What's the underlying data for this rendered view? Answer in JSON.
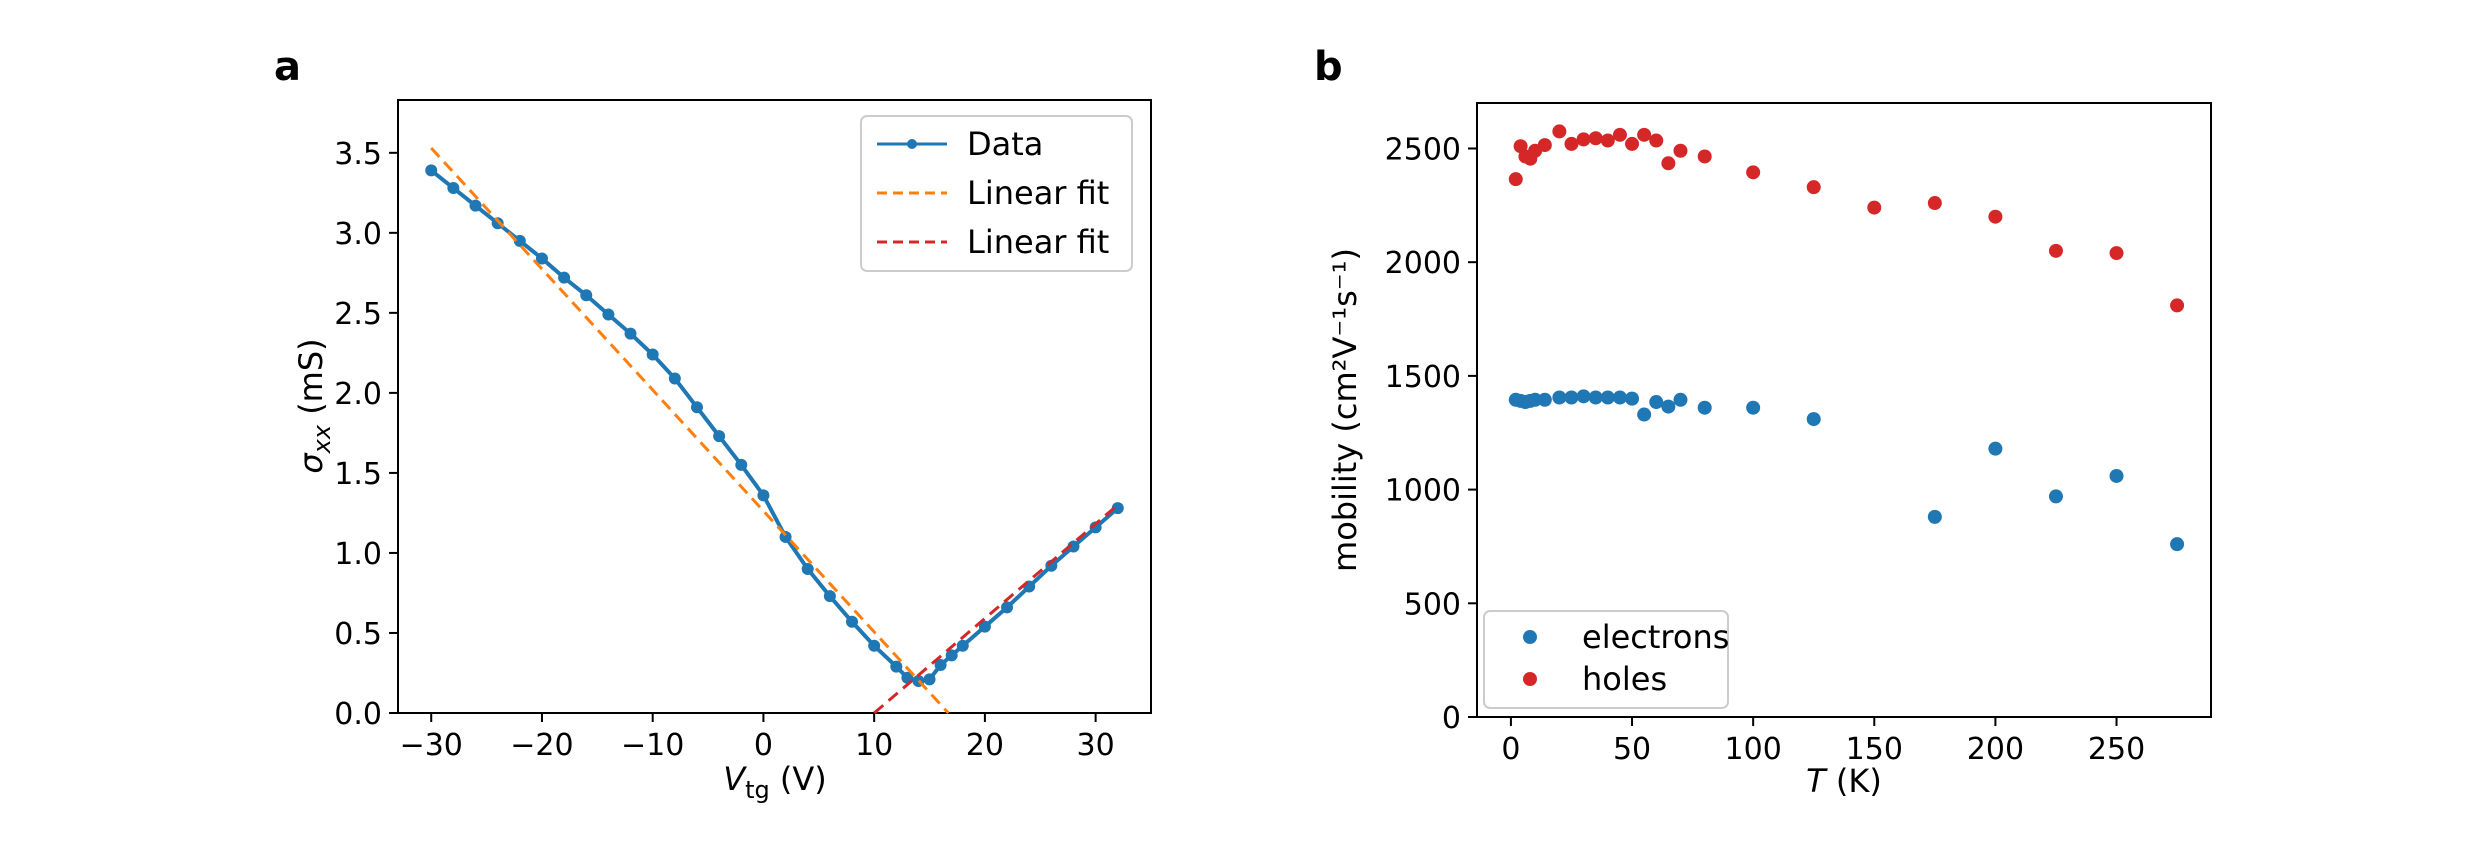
{
  "panels": {
    "a": "a",
    "b": "b"
  },
  "chart_data": [
    {
      "panel": "a",
      "type": "line",
      "title": "",
      "xlabel": {
        "main": "V",
        "sub": "tg",
        "unit": " (V)"
      },
      "ylabel": {
        "main": "σ",
        "sub": "xx",
        "unit": " (mS)"
      },
      "xlim": [
        -33,
        35
      ],
      "ylim": [
        0,
        3.83
      ],
      "xticks": [
        -30,
        -20,
        -10,
        0,
        10,
        20,
        30
      ],
      "xtick_labels": [
        "−30",
        "−20",
        "−10",
        "0",
        "10",
        "20",
        "30"
      ],
      "yticks": [
        0,
        0.5,
        1,
        1.5,
        2,
        2.5,
        3,
        3.5
      ],
      "ytick_labels": [
        "0.0",
        "0.5",
        "1.0",
        "1.5",
        "2.0",
        "2.5",
        "3.0",
        "3.5"
      ],
      "legend_position": "upper right",
      "series": [
        {
          "name": "Data",
          "kind": "line-marker",
          "color": "#1f77b4",
          "x": [
            -30,
            -28,
            -26,
            -24,
            -22,
            -20,
            -18,
            -16,
            -14,
            -12,
            -10,
            -8,
            -6,
            -4,
            -2,
            0,
            2,
            4,
            6,
            8,
            10,
            12,
            13,
            14,
            15,
            16,
            17,
            18,
            20,
            22,
            24,
            26,
            28,
            30,
            32
          ],
          "y": [
            3.39,
            3.28,
            3.17,
            3.06,
            2.95,
            2.84,
            2.72,
            2.61,
            2.49,
            2.37,
            2.24,
            2.09,
            1.91,
            1.73,
            1.55,
            1.36,
            1.1,
            0.9,
            0.73,
            0.57,
            0.42,
            0.29,
            0.22,
            0.2,
            0.21,
            0.3,
            0.36,
            0.42,
            0.54,
            0.66,
            0.79,
            0.92,
            1.04,
            1.16,
            1.28
          ]
        },
        {
          "name": "Linear fit",
          "kind": "dashed",
          "color": "#ff7f0e",
          "x": [
            -30,
            16.7
          ],
          "y": [
            3.53,
            0.0
          ]
        },
        {
          "name": "Linear fit",
          "kind": "dashed",
          "color": "#d62728",
          "x": [
            10,
            32
          ],
          "y": [
            0.0,
            1.3
          ]
        }
      ]
    },
    {
      "panel": "b",
      "type": "scatter",
      "title": "",
      "xlabel": {
        "main": "T",
        "unit": " (K)"
      },
      "ylabel": {
        "text": "mobility (cm²V⁻¹s⁻¹)"
      },
      "xlim": [
        -14,
        289
      ],
      "ylim": [
        0,
        2700
      ],
      "xticks": [
        0,
        50,
        100,
        150,
        200,
        250
      ],
      "xtick_labels": [
        "0",
        "50",
        "100",
        "150",
        "200",
        "250"
      ],
      "yticks": [
        0,
        500,
        1000,
        1500,
        2000,
        2500
      ],
      "ytick_labels": [
        "0",
        "500",
        "1000",
        "1500",
        "2000",
        "2500"
      ],
      "legend_position": "lower left",
      "series": [
        {
          "name": "electrons",
          "color": "#1f77b4",
          "x": [
            2,
            4,
            6,
            8,
            10,
            14,
            20,
            25,
            30,
            35,
            40,
            45,
            50,
            55,
            60,
            65,
            70,
            80,
            100,
            125,
            175,
            200,
            225,
            250,
            275
          ],
          "y": [
            1395,
            1390,
            1385,
            1390,
            1395,
            1395,
            1405,
            1405,
            1410,
            1405,
            1405,
            1405,
            1400,
            1330,
            1385,
            1365,
            1395,
            1360,
            1360,
            1310,
            880,
            1180,
            970,
            1060,
            760
          ]
        },
        {
          "name": "holes",
          "color": "#d62728",
          "x": [
            2,
            4,
            6,
            8,
            10,
            14,
            20,
            25,
            30,
            35,
            40,
            45,
            50,
            55,
            60,
            65,
            70,
            80,
            100,
            125,
            150,
            175,
            200,
            225,
            250,
            275
          ],
          "y": [
            2365,
            2510,
            2465,
            2455,
            2490,
            2515,
            2575,
            2520,
            2540,
            2545,
            2535,
            2560,
            2520,
            2560,
            2535,
            2435,
            2490,
            2465,
            2395,
            2330,
            2240,
            2260,
            2200,
            2050,
            2040,
            1810
          ]
        }
      ]
    }
  ]
}
